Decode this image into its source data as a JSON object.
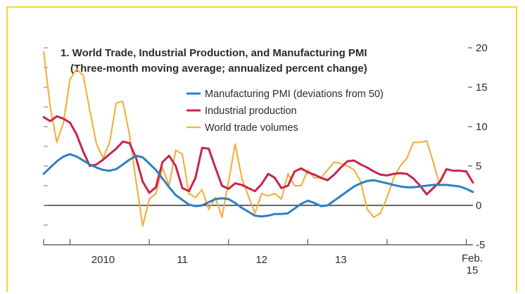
{
  "chart_data": {
    "type": "line",
    "title": "1. World Trade, Industrial Production, and Manufacturing PMI",
    "subtitle": "(Three-month moving average; annualized percent change)",
    "xlabel": "",
    "ylabel": "",
    "ylim": [
      -5,
      20
    ],
    "yticks": [
      -5,
      0,
      5,
      10,
      15,
      20
    ],
    "x_axis_labels": [
      "2010",
      "11",
      "12",
      "13",
      "Feb. 15"
    ],
    "x_range": [
      "2009-09",
      "2015-02"
    ],
    "grid": false,
    "legend_position": "top-center",
    "zero_line": true,
    "series": [
      {
        "name": "Manufacturing PMI (deviations from 50)",
        "color": "#2f7fc1",
        "x": [
          "2009-09",
          "2009-10",
          "2009-11",
          "2009-12",
          "2010-01",
          "2010-02",
          "2010-03",
          "2010-04",
          "2010-05",
          "2010-06",
          "2010-07",
          "2010-08",
          "2010-09",
          "2010-10",
          "2010-11",
          "2010-12",
          "2011-01",
          "2011-02",
          "2011-03",
          "2011-04",
          "2011-05",
          "2011-06",
          "2011-07",
          "2011-08",
          "2011-09",
          "2011-10",
          "2011-11",
          "2011-12",
          "2012-01",
          "2012-02",
          "2012-03",
          "2012-04",
          "2012-05",
          "2012-06",
          "2012-07",
          "2012-08",
          "2012-09",
          "2012-10",
          "2012-11",
          "2012-12",
          "2013-01",
          "2013-02",
          "2013-03",
          "2013-04",
          "2013-05",
          "2013-06",
          "2013-07",
          "2013-08",
          "2013-09",
          "2013-10",
          "2013-11",
          "2013-12",
          "2014-01",
          "2014-02",
          "2014-03",
          "2014-04",
          "2014-05",
          "2014-06",
          "2014-07",
          "2014-08",
          "2014-09",
          "2014-10",
          "2014-11",
          "2014-12",
          "2015-01",
          "2015-02"
        ],
        "y": [
          4.0,
          4.8,
          5.6,
          6.2,
          6.5,
          6.2,
          5.7,
          5.2,
          4.8,
          4.5,
          4.4,
          4.6,
          5.2,
          5.8,
          6.3,
          6.1,
          5.3,
          4.5,
          3.4,
          2.3,
          1.3,
          0.7,
          0.1,
          -0.1,
          0.0,
          0.4,
          0.8,
          0.9,
          0.8,
          0.3,
          -0.3,
          -0.8,
          -1.3,
          -1.4,
          -1.3,
          -1.1,
          -1.1,
          -1.0,
          -0.4,
          0.2,
          0.6,
          0.3,
          -0.1,
          0.0,
          0.6,
          1.2,
          1.8,
          2.4,
          2.8,
          3.1,
          3.2,
          3.0,
          2.8,
          2.6,
          2.4,
          2.3,
          2.3,
          2.4,
          2.5,
          2.6,
          2.6,
          2.6,
          2.5,
          2.4,
          2.1,
          1.7
        ]
      },
      {
        "name": "Industrial production",
        "color": "#c8244c",
        "x": [
          "2009-09",
          "2009-10",
          "2009-11",
          "2009-12",
          "2010-01",
          "2010-02",
          "2010-03",
          "2010-04",
          "2010-05",
          "2010-06",
          "2010-07",
          "2010-08",
          "2010-09",
          "2010-10",
          "2010-11",
          "2010-12",
          "2011-01",
          "2011-02",
          "2011-03",
          "2011-04",
          "2011-05",
          "2011-06",
          "2011-07",
          "2011-08",
          "2011-09",
          "2011-10",
          "2011-11",
          "2011-12",
          "2012-01",
          "2012-02",
          "2012-03",
          "2012-04",
          "2012-05",
          "2012-06",
          "2012-07",
          "2012-08",
          "2012-09",
          "2012-10",
          "2012-11",
          "2012-12",
          "2013-01",
          "2013-02",
          "2013-03",
          "2013-04",
          "2013-05",
          "2013-06",
          "2013-07",
          "2013-08",
          "2013-09",
          "2013-10",
          "2013-11",
          "2013-12",
          "2014-01",
          "2014-02",
          "2014-03",
          "2014-04",
          "2014-05",
          "2014-06",
          "2014-07",
          "2014-08",
          "2014-09",
          "2014-10",
          "2014-11",
          "2014-12",
          "2015-01",
          "2015-02"
        ],
        "y": [
          11.2,
          10.7,
          11.3,
          11.0,
          10.5,
          9.0,
          6.8,
          5.0,
          5.2,
          5.8,
          6.5,
          7.2,
          8.1,
          7.9,
          6.0,
          3.0,
          1.6,
          2.3,
          5.5,
          6.3,
          5.0,
          2.2,
          1.8,
          3.5,
          7.3,
          7.2,
          4.8,
          2.5,
          2.1,
          2.8,
          2.6,
          2.2,
          1.8,
          2.7,
          4.0,
          3.5,
          2.2,
          2.5,
          4.3,
          4.7,
          4.2,
          3.9,
          3.5,
          3.2,
          3.9,
          4.8,
          5.6,
          5.7,
          5.2,
          4.8,
          4.3,
          3.9,
          3.8,
          4.0,
          4.1,
          4.0,
          3.4,
          2.5,
          1.4,
          2.2,
          3.0,
          4.6,
          4.4,
          4.4,
          4.3,
          2.9
        ]
      },
      {
        "name": "World trade volumes",
        "color": "#f5b041",
        "x": [
          "2009-09",
          "2009-10",
          "2009-11",
          "2009-12",
          "2010-01",
          "2010-02",
          "2010-03",
          "2010-04",
          "2010-05",
          "2010-06",
          "2010-07",
          "2010-08",
          "2010-09",
          "2010-10",
          "2010-11",
          "2010-12",
          "2011-01",
          "2011-02",
          "2011-03",
          "2011-04",
          "2011-05",
          "2011-06",
          "2011-07",
          "2011-08",
          "2011-09",
          "2011-10",
          "2011-11",
          "2011-12",
          "2012-01",
          "2012-02",
          "2012-03",
          "2012-04",
          "2012-05",
          "2012-06",
          "2012-07",
          "2012-08",
          "2012-09",
          "2012-10",
          "2012-11",
          "2012-12",
          "2013-01",
          "2013-02",
          "2013-03",
          "2013-04",
          "2013-05",
          "2013-06",
          "2013-07",
          "2013-08",
          "2013-09",
          "2013-10",
          "2013-11",
          "2013-12",
          "2014-01",
          "2014-02",
          "2014-03",
          "2014-04",
          "2014-05",
          "2014-06",
          "2014-07",
          "2014-08",
          "2014-09",
          "2014-10",
          "2014-11",
          "2014-12",
          "2015-01",
          "2015-02"
        ],
        "y": [
          19.5,
          12.5,
          8.0,
          10.5,
          16.0,
          17.3,
          16.5,
          12.0,
          7.8,
          6.0,
          8.0,
          13.0,
          13.2,
          9.0,
          3.0,
          -2.6,
          0.8,
          1.5,
          4.8,
          2.5,
          7.0,
          6.5,
          1.5,
          1.0,
          2.0,
          -0.5,
          1.0,
          -1.5,
          3.0,
          7.8,
          3.5,
          1.2,
          -1.0,
          1.5,
          1.2,
          1.5,
          0.8,
          4.0,
          2.5,
          2.5,
          4.5,
          3.5,
          3.5,
          4.5,
          5.5,
          5.3,
          5.0,
          4.5,
          3.0,
          -0.5,
          -1.5,
          -1.0,
          1.0,
          3.5,
          5.0,
          6.0,
          8.0,
          8.0,
          8.2,
          5.5,
          2.5,
          null,
          null,
          null,
          null,
          null
        ]
      }
    ]
  }
}
